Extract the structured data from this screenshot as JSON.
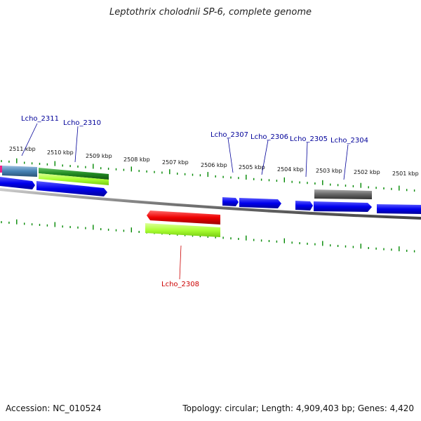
{
  "title": "Leptothrix cholodnii SP-6, complete genome",
  "footer": {
    "accession": "Accession: NC_010524",
    "summary": "Topology: circular; Length: 4,909,403 bp; Genes: 4,420"
  },
  "colors": {
    "forward": "#0000ee",
    "selected": "#ee0000",
    "cds_green": "#228b22",
    "cds_lime": "#aaff33",
    "pseudo_gray": "#666666",
    "steelblue": "#4682b4",
    "magenta": "#ee2288",
    "label_blue": "#000099",
    "label_red": "#cc0000",
    "tick_green": "#008800",
    "backbone": "#888888"
  },
  "ruler_labels": [
    "2511 kbp",
    "2510 kbp",
    "2509 kbp",
    "2508 kbp",
    "2507 kbp",
    "2506 kbp",
    "2505 kbp",
    "2504 kbp",
    "2503 kbp",
    "2502 kbp",
    "2501 kbp"
  ],
  "gene_labels": [
    {
      "name": "Lcho_2311",
      "color": "label_blue"
    },
    {
      "name": "Lcho_2310",
      "color": "label_blue"
    },
    {
      "name": "Lcho_2307",
      "color": "label_blue"
    },
    {
      "name": "Lcho_2306",
      "color": "label_blue"
    },
    {
      "name": "Lcho_2305",
      "color": "label_blue"
    },
    {
      "name": "Lcho_2304",
      "color": "label_blue"
    },
    {
      "name": "Lcho_2308",
      "color": "label_red"
    }
  ]
}
